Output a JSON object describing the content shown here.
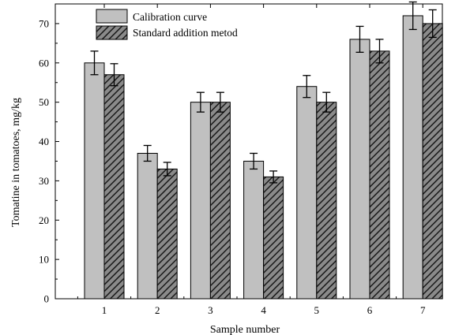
{
  "chart_data": {
    "type": "bar",
    "title": "",
    "xlabel": "Sample number",
    "ylabel": "Tomatine in tomatoes, mg/kg",
    "categories": [
      "1",
      "2",
      "3",
      "4",
      "5",
      "6",
      "7"
    ],
    "ylim": [
      0,
      75
    ],
    "yticks": [
      0,
      10,
      20,
      30,
      40,
      50,
      60,
      70
    ],
    "legend_position": "top-left",
    "series": [
      {
        "name": "Calibration curve",
        "values": [
          60,
          37,
          50,
          35,
          54,
          66,
          72
        ],
        "errors": [
          3,
          2,
          2.5,
          2,
          2.8,
          3.3,
          3.5
        ],
        "fill": "#c0c0c0",
        "pattern": "solid"
      },
      {
        "name": "Standard addition metod",
        "values": [
          57,
          33,
          50,
          31,
          50,
          63,
          70
        ],
        "errors": [
          2.8,
          1.7,
          2.5,
          1.5,
          2.5,
          3,
          3.5
        ],
        "fill": "#808080",
        "pattern": "diagonal-hatch"
      }
    ]
  }
}
